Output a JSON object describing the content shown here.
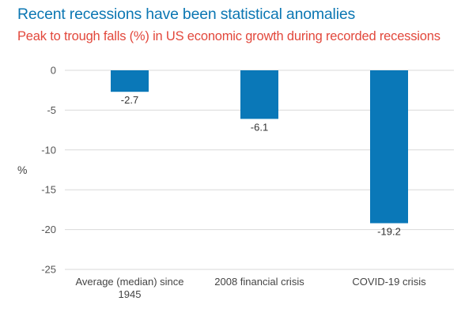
{
  "chart_data": {
    "type": "bar",
    "title": "Recent recessions have been statistical anomalies",
    "subtitle": "Peak to trough falls (%) in US economic growth during recorded recessions",
    "ylabel": "%",
    "xlabel": "",
    "categories": [
      [
        "Average (median) since",
        "1945"
      ],
      [
        "2008 financial crisis"
      ],
      [
        "COVID-19 crisis"
      ]
    ],
    "values": [
      -2.7,
      -6.1,
      -19.2
    ],
    "data_labels": [
      "-2.7",
      "-6.1",
      "-19.2"
    ],
    "ylim": [
      -25,
      0
    ],
    "yticks": [
      0,
      -5,
      -10,
      -15,
      -20,
      -25
    ],
    "grid": true,
    "legend": "none",
    "bar_color": "#0a78b8",
    "grid_color": "#d9d9d9"
  }
}
